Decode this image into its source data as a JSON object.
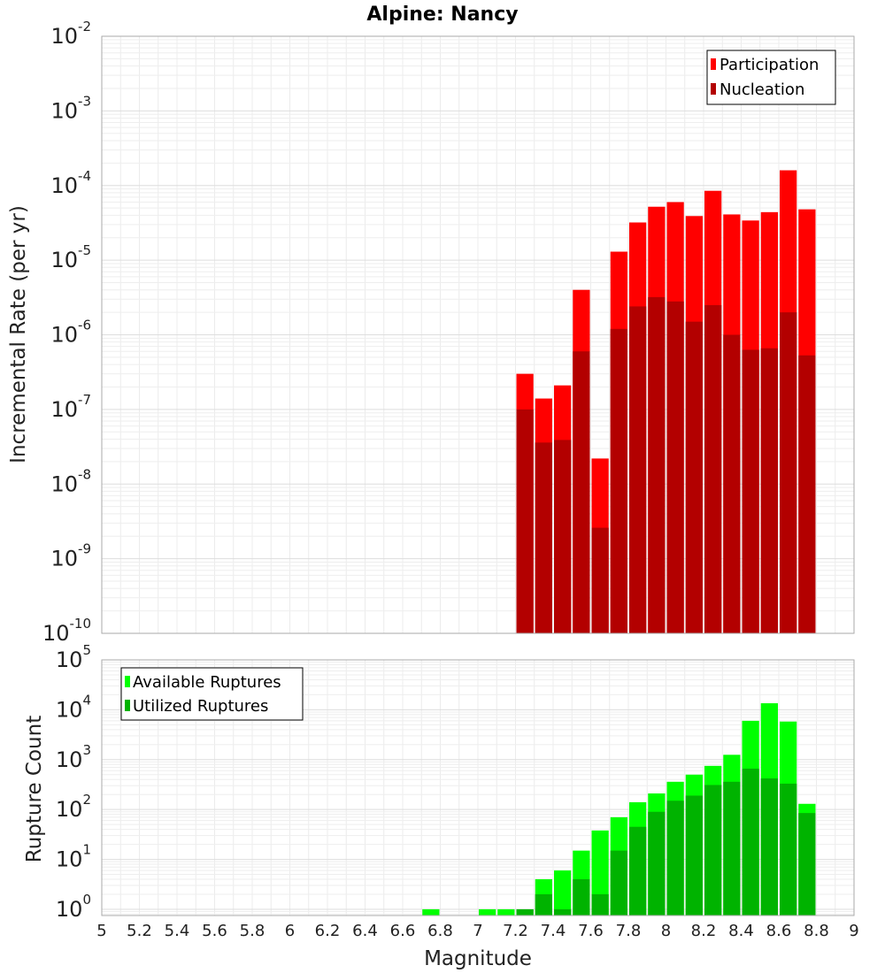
{
  "chart_data": [
    {
      "type": "bar",
      "title": "Alpine: Nancy",
      "xlabel": "",
      "ylabel": "Incremental Rate (per yr)",
      "y_scale": "log",
      "ylim": [
        1e-10,
        0.01
      ],
      "xlim": [
        5,
        9
      ],
      "bin_width": 0.1,
      "grid": true,
      "legend_position": "top-right",
      "x": [
        7.25,
        7.35,
        7.45,
        7.55,
        7.65,
        7.75,
        7.85,
        7.95,
        8.05,
        8.15,
        8.25,
        8.35,
        8.45,
        8.55,
        8.65,
        8.75
      ],
      "series": [
        {
          "name": "Participation",
          "color": "#ff0000",
          "values": [
            3e-07,
            1.4e-07,
            2.1e-07,
            4e-06,
            2.2e-08,
            1.3e-05,
            3.2e-05,
            5.2e-05,
            6e-05,
            3.9e-05,
            8.5e-05,
            4.1e-05,
            3.4e-05,
            4.4e-05,
            0.00016,
            4.8e-05
          ]
        },
        {
          "name": "Nucleation",
          "color": "#b30000",
          "values": [
            1e-07,
            3.6e-08,
            3.9e-08,
            6e-07,
            2.6e-09,
            1.2e-06,
            2.4e-06,
            3.2e-06,
            2.8e-06,
            1.5e-06,
            2.5e-06,
            1e-06,
            6.3e-07,
            6.6e-07,
            2e-06,
            5.3e-07
          ]
        }
      ]
    },
    {
      "type": "bar",
      "title": "",
      "xlabel": "Magnitude",
      "ylabel": "Rupture Count",
      "y_scale": "log",
      "ylim": [
        0.75,
        100000.0
      ],
      "xlim": [
        5,
        9
      ],
      "bin_width": 0.1,
      "grid": true,
      "legend_position": "top-left",
      "x_ticks": [
        "5",
        "5.2",
        "5.4",
        "5.6",
        "5.8",
        "6",
        "6.2",
        "6.4",
        "6.6",
        "6.8",
        "7",
        "7.2",
        "7.4",
        "7.6",
        "7.8",
        "8",
        "8.2",
        "8.4",
        "8.6",
        "8.8",
        "9"
      ],
      "x": [
        6.75,
        7.05,
        7.15,
        7.25,
        7.35,
        7.45,
        7.55,
        7.65,
        7.75,
        7.85,
        7.95,
        8.05,
        8.15,
        8.25,
        8.35,
        8.45,
        8.55,
        8.65,
        8.75
      ],
      "series": [
        {
          "name": "Available Ruptures",
          "color": "#00ff00",
          "values": [
            1,
            1,
            1,
            1,
            4,
            6,
            15,
            38,
            70,
            140,
            210,
            360,
            500,
            750,
            1250,
            6000,
            13500,
            5800,
            130
          ]
        },
        {
          "name": "Utilized Ruptures",
          "color": "#00b300",
          "values": [
            0,
            0,
            0,
            1,
            2,
            1,
            4,
            2,
            15,
            45,
            90,
            150,
            190,
            310,
            360,
            660,
            420,
            330,
            85
          ]
        }
      ]
    }
  ]
}
